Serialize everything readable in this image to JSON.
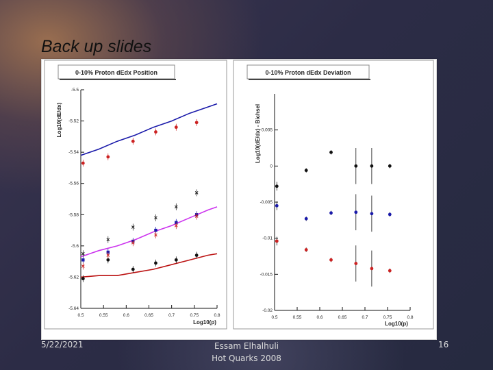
{
  "slide": {
    "title": "Back up slides",
    "footer_date": "5/22/2021",
    "footer_author_line1": "Essam Elhalhuli",
    "footer_author_line2": "Hot Quarks 2008",
    "slide_number": "16"
  },
  "chart_data": [
    {
      "type": "scatter",
      "title": "0-10% Proton dEdx Position",
      "xlabel": "Log10(p)",
      "ylabel": "Log10(dE/dx)",
      "xlim": [
        0.5,
        0.8
      ],
      "ylim": [
        -5.64,
        -5.5
      ],
      "xticks": [
        0.5,
        0.55,
        0.6,
        0.65,
        0.7,
        0.75,
        0.8
      ],
      "yticks": [
        -5.64,
        -5.62,
        -5.6,
        -5.58,
        -5.56,
        -5.54,
        -5.52,
        -5.5
      ],
      "xtick_labels": [
        "0.5",
        "0.55",
        "0.6",
        "0.65",
        "0.7",
        "0.75",
        "0.8"
      ],
      "ytick_labels": [
        "-5.64",
        "-5.62",
        "-5.6",
        "-5.58",
        "-5.56",
        "-5.54",
        "-5.52",
        "-5.5"
      ],
      "grid": false,
      "series": [
        {
          "color": "#cc2222",
          "marker": "circle",
          "x": [
            0.505,
            0.56,
            0.615,
            0.665,
            0.71,
            0.755
          ],
          "y": [
            -5.547,
            -5.543,
            -5.533,
            -5.527,
            -5.524,
            -5.521
          ]
        },
        {
          "color": "#1a1aaa",
          "marker": "square",
          "x": [
            0.505,
            0.56,
            0.615,
            0.665,
            0.71,
            0.755
          ],
          "y": [
            -5.609,
            -5.604,
            -5.597,
            -5.59,
            -5.585,
            -5.58
          ]
        },
        {
          "color": "#111111",
          "marker": "circle",
          "x": [
            0.505,
            0.56,
            0.615,
            0.665,
            0.71,
            0.755
          ],
          "y": [
            -5.621,
            -5.609,
            -5.615,
            -5.611,
            -5.609,
            -5.606
          ]
        },
        {
          "color": "#222222",
          "marker": "cross",
          "x": [
            0.505,
            0.56,
            0.615,
            0.665,
            0.71,
            0.755
          ],
          "y": [
            -5.605,
            -5.596,
            -5.588,
            -5.582,
            -5.575,
            -5.566
          ]
        },
        {
          "color": "#cc2222",
          "marker": "cross",
          "x": [
            0.505,
            0.56,
            0.615,
            0.665,
            0.71,
            0.755
          ],
          "y": [
            -5.613,
            -5.606,
            -5.598,
            -5.593,
            -5.587,
            -5.581
          ]
        }
      ],
      "curves": [
        {
          "color": "#1a1aaa",
          "x": [
            0.5,
            0.54,
            0.58,
            0.62,
            0.66,
            0.7,
            0.74,
            0.78,
            0.8
          ],
          "y": [
            -5.542,
            -5.538,
            -5.533,
            -5.529,
            -5.524,
            -5.52,
            -5.515,
            -5.511,
            -5.509
          ]
        },
        {
          "color": "#cc33ee",
          "x": [
            0.5,
            0.54,
            0.58,
            0.62,
            0.66,
            0.7,
            0.74,
            0.78,
            0.8
          ],
          "y": [
            -5.607,
            -5.603,
            -5.6,
            -5.596,
            -5.591,
            -5.587,
            -5.582,
            -5.577,
            -5.575
          ]
        },
        {
          "color": "#bb1111",
          "x": [
            0.5,
            0.54,
            0.58,
            0.62,
            0.66,
            0.7,
            0.74,
            0.78,
            0.8
          ],
          "y": [
            -5.62,
            -5.619,
            -5.619,
            -5.617,
            -5.615,
            -5.612,
            -5.609,
            -5.606,
            -5.605
          ]
        }
      ]
    },
    {
      "type": "scatter",
      "title": "0-10% Proton dEdx Deviation",
      "xlabel": "Log10(p)",
      "ylabel": "Log10(dE/dx) - Bichsel",
      "xlim": [
        0.5,
        0.8
      ],
      "ylim": [
        -0.02,
        0.01
      ],
      "xticks": [
        0.5,
        0.55,
        0.6,
        0.65,
        0.7,
        0.75,
        0.8
      ],
      "yticks": [
        -0.02,
        -0.015,
        -0.01,
        -0.005,
        0,
        0.005
      ],
      "xtick_labels": [
        "0.5",
        "0.55",
        "0.6",
        "0.65",
        "0.7",
        "0.75",
        "0.8"
      ],
      "ytick_labels": [
        "-0.02",
        "-0.015",
        "-0.01",
        "-0.005",
        "0",
        "0.005"
      ],
      "grid": false,
      "series": [
        {
          "color": "#111111",
          "marker": "circle",
          "x": [
            0.505,
            0.57,
            0.625,
            0.68,
            0.715,
            0.755
          ],
          "y": [
            -0.0028,
            -0.0006,
            0.0019,
            0,
            0,
            0
          ],
          "err": [
            0.0006,
            0.0003,
            0.0003,
            0.0025,
            0.0025,
            0.0003
          ]
        },
        {
          "color": "#1a1aaa",
          "marker": "circle",
          "x": [
            0.505,
            0.57,
            0.625,
            0.68,
            0.715,
            0.755
          ],
          "y": [
            -0.0055,
            -0.0073,
            -0.0065,
            -0.0064,
            -0.0066,
            -0.0067
          ],
          "err": [
            0.0006,
            0.0003,
            0.0003,
            0.0025,
            0.0025,
            0.0003
          ]
        },
        {
          "color": "#cc2222",
          "marker": "circle",
          "x": [
            0.505,
            0.57,
            0.625,
            0.68,
            0.715,
            0.755
          ],
          "y": [
            -0.0104,
            -0.0116,
            -0.013,
            -0.0135,
            -0.0142,
            -0.0145
          ],
          "err": [
            0.0006,
            0.0003,
            0.0003,
            0.0025,
            0.0025,
            0.0003
          ]
        }
      ]
    }
  ]
}
